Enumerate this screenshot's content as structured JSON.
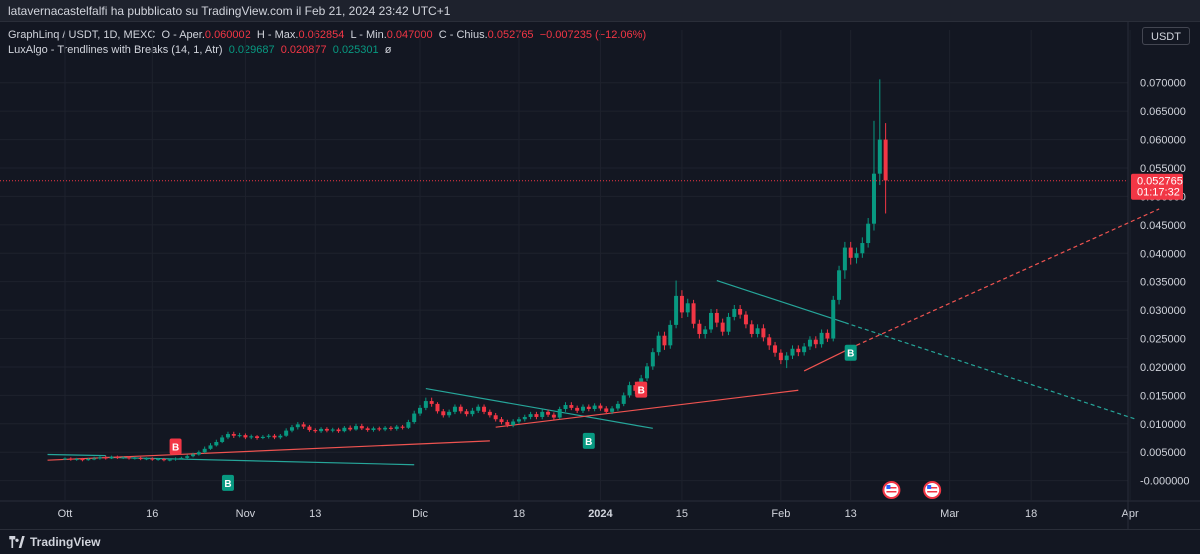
{
  "header": {
    "publish_text": "latavernacastelfalfi ha pubblicato su TradingView.com il Feb 21, 2024 23:42 UTC+1"
  },
  "legend": {
    "symbol": "GraphLinq / USDT, 1D, MEXC",
    "open_label": "O - Aper.",
    "open_value": "0.060002",
    "high_label": "H - Max.",
    "high_value": "0.062854",
    "low_label": "L - Min.",
    "low_value": "0.047000",
    "close_label": "C - Chius.",
    "close_value": "0.052765",
    "change": "−0.007235 (−12.06%)",
    "indicator": "LuxAlgo - Trendlines with Breaks (14, 1, Atr)",
    "ind_v1": "0.029687",
    "ind_v2": "0.020877",
    "ind_v3": "0.025301",
    "ind_v4": "ø"
  },
  "currency_button": "USDT",
  "footer": {
    "brand": "TradingView"
  },
  "colors": {
    "up": "#089981",
    "down": "#f23645",
    "background": "#131722",
    "trend_teal": "#26a69a",
    "trend_red": "#ef5350"
  },
  "chart_data": {
    "type": "candlestick",
    "ylim": [
      -0.002,
      0.074
    ],
    "y_ticks": [
      "0.070000",
      "0.065000",
      "0.060000",
      "0.055000",
      "0.050000",
      "0.045000",
      "0.040000",
      "0.035000",
      "0.030000",
      "0.025000",
      "0.020000",
      "0.015000",
      "0.010000",
      "0.005000",
      "-0.000000"
    ],
    "x_tick_labels": [
      {
        "day": 0,
        "label": "Ott"
      },
      {
        "day": 15,
        "label": "16"
      },
      {
        "day": 31,
        "label": "Nov"
      },
      {
        "day": 43,
        "label": "13"
      },
      {
        "day": 61,
        "label": "Dic"
      },
      {
        "day": 78,
        "label": "18"
      },
      {
        "day": 92,
        "label": "2024"
      },
      {
        "day": 106,
        "label": "15"
      },
      {
        "day": 123,
        "label": "Feb"
      },
      {
        "day": 135,
        "label": "13"
      },
      {
        "day": 152,
        "label": "Mar"
      },
      {
        "day": 166,
        "label": "18"
      },
      {
        "day": 183,
        "label": "Apr"
      }
    ],
    "candles": [
      [
        0.0038,
        0.0039,
        0.0041,
        0.0036
      ],
      [
        0.0039,
        0.0037,
        0.0041,
        0.0035
      ],
      [
        0.0037,
        0.0038,
        0.004,
        0.0035
      ],
      [
        0.0038,
        0.0036,
        0.004,
        0.0034
      ],
      [
        0.0036,
        0.0038,
        0.004,
        0.0035
      ],
      [
        0.0038,
        0.0039,
        0.0042,
        0.0036
      ],
      [
        0.0039,
        0.0041,
        0.0043,
        0.0037
      ],
      [
        0.0041,
        0.0039,
        0.0044,
        0.0037
      ],
      [
        0.0039,
        0.0042,
        0.0044,
        0.0038
      ],
      [
        0.0042,
        0.004,
        0.0044,
        0.0038
      ],
      [
        0.004,
        0.0041,
        0.0043,
        0.0038
      ],
      [
        0.0041,
        0.0039,
        0.0043,
        0.0037
      ],
      [
        0.0039,
        0.004,
        0.0042,
        0.0037
      ],
      [
        0.004,
        0.0038,
        0.0042,
        0.0036
      ],
      [
        0.0038,
        0.0039,
        0.0041,
        0.0036
      ],
      [
        0.0039,
        0.0037,
        0.0041,
        0.0035
      ],
      [
        0.0037,
        0.0038,
        0.004,
        0.0035
      ],
      [
        0.0038,
        0.0036,
        0.004,
        0.0034
      ],
      [
        0.0036,
        0.0037,
        0.0039,
        0.0034
      ],
      [
        0.0037,
        0.0039,
        0.0041,
        0.0035
      ],
      [
        0.0039,
        0.004,
        0.0042,
        0.0037
      ],
      [
        0.004,
        0.0043,
        0.0046,
        0.0038
      ],
      [
        0.0043,
        0.0046,
        0.0049,
        0.0041
      ],
      [
        0.0046,
        0.005,
        0.0053,
        0.0044
      ],
      [
        0.005,
        0.0056,
        0.006,
        0.0048
      ],
      [
        0.0056,
        0.0062,
        0.0066,
        0.0054
      ],
      [
        0.0062,
        0.0068,
        0.0072,
        0.006
      ],
      [
        0.0068,
        0.0076,
        0.008,
        0.0066
      ],
      [
        0.0076,
        0.0082,
        0.0086,
        0.0073
      ],
      [
        0.0082,
        0.0079,
        0.0086,
        0.0075
      ],
      [
        0.0079,
        0.008,
        0.0084,
        0.0076
      ],
      [
        0.008,
        0.0076,
        0.0083,
        0.0073
      ],
      [
        0.0076,
        0.0078,
        0.0081,
        0.0073
      ],
      [
        0.0078,
        0.0075,
        0.008,
        0.0072
      ],
      [
        0.0075,
        0.0077,
        0.008,
        0.0073
      ],
      [
        0.0077,
        0.0079,
        0.0082,
        0.0074
      ],
      [
        0.0079,
        0.0076,
        0.0082,
        0.0073
      ],
      [
        0.0076,
        0.0079,
        0.0082,
        0.0073
      ],
      [
        0.0079,
        0.0088,
        0.0092,
        0.0077
      ],
      [
        0.0088,
        0.0094,
        0.0098,
        0.0085
      ],
      [
        0.0094,
        0.0099,
        0.0103,
        0.009
      ],
      [
        0.0099,
        0.0095,
        0.0103,
        0.0091
      ],
      [
        0.0095,
        0.0089,
        0.0098,
        0.0086
      ],
      [
        0.0089,
        0.0087,
        0.0092,
        0.0084
      ],
      [
        0.0087,
        0.0091,
        0.0094,
        0.0084
      ],
      [
        0.0091,
        0.0088,
        0.0094,
        0.0085
      ],
      [
        0.0088,
        0.009,
        0.0093,
        0.0085
      ],
      [
        0.009,
        0.0087,
        0.0093,
        0.0084
      ],
      [
        0.0087,
        0.0093,
        0.0096,
        0.0085
      ],
      [
        0.0093,
        0.009,
        0.0097,
        0.0087
      ],
      [
        0.009,
        0.0096,
        0.01,
        0.0088
      ],
      [
        0.0096,
        0.0092,
        0.01,
        0.0089
      ],
      [
        0.0092,
        0.0089,
        0.0095,
        0.0086
      ],
      [
        0.0089,
        0.0092,
        0.0095,
        0.0086
      ],
      [
        0.0092,
        0.009,
        0.0095,
        0.0087
      ],
      [
        0.009,
        0.0093,
        0.0096,
        0.0087
      ],
      [
        0.0093,
        0.0091,
        0.0096,
        0.0088
      ],
      [
        0.0091,
        0.0095,
        0.0098,
        0.0088
      ],
      [
        0.0095,
        0.0093,
        0.0098,
        0.009
      ],
      [
        0.0093,
        0.0103,
        0.0107,
        0.0091
      ],
      [
        0.0103,
        0.0118,
        0.0123,
        0.01
      ],
      [
        0.0118,
        0.0128,
        0.0133,
        0.0114
      ],
      [
        0.0128,
        0.014,
        0.0146,
        0.0124
      ],
      [
        0.014,
        0.0135,
        0.0146,
        0.013
      ],
      [
        0.0135,
        0.0122,
        0.0138,
        0.0118
      ],
      [
        0.0122,
        0.0115,
        0.0126,
        0.0111
      ],
      [
        0.0115,
        0.0121,
        0.0125,
        0.0111
      ],
      [
        0.0121,
        0.013,
        0.0134,
        0.0117
      ],
      [
        0.013,
        0.0122,
        0.0134,
        0.0118
      ],
      [
        0.0122,
        0.0117,
        0.0126,
        0.0113
      ],
      [
        0.0117,
        0.0123,
        0.0128,
        0.0113
      ],
      [
        0.0123,
        0.013,
        0.0134,
        0.0119
      ],
      [
        0.013,
        0.0121,
        0.0134,
        0.0117
      ],
      [
        0.0121,
        0.0115,
        0.0125,
        0.0111
      ],
      [
        0.0115,
        0.0108,
        0.0119,
        0.0104
      ],
      [
        0.0108,
        0.0103,
        0.0112,
        0.0099
      ],
      [
        0.0103,
        0.0098,
        0.0107,
        0.0094
      ],
      [
        0.0098,
        0.0104,
        0.0108,
        0.0094
      ],
      [
        0.0104,
        0.0108,
        0.0112,
        0.01
      ],
      [
        0.0108,
        0.0112,
        0.0116,
        0.0104
      ],
      [
        0.0112,
        0.0117,
        0.0121,
        0.0108
      ],
      [
        0.0117,
        0.0112,
        0.0121,
        0.0108
      ],
      [
        0.0112,
        0.0121,
        0.0125,
        0.0108
      ],
      [
        0.0121,
        0.0116,
        0.0125,
        0.0112
      ],
      [
        0.0116,
        0.0111,
        0.012,
        0.0107
      ],
      [
        0.0111,
        0.0126,
        0.013,
        0.0108
      ],
      [
        0.0126,
        0.0133,
        0.0138,
        0.0121
      ],
      [
        0.0133,
        0.0128,
        0.0138,
        0.0124
      ],
      [
        0.0128,
        0.0123,
        0.0132,
        0.0119
      ],
      [
        0.0123,
        0.013,
        0.0134,
        0.0119
      ],
      [
        0.013,
        0.0126,
        0.0134,
        0.0122
      ],
      [
        0.0126,
        0.0132,
        0.0136,
        0.0122
      ],
      [
        0.0132,
        0.0127,
        0.0136,
        0.0123
      ],
      [
        0.0127,
        0.0121,
        0.0131,
        0.0117
      ],
      [
        0.0121,
        0.0127,
        0.0131,
        0.0117
      ],
      [
        0.0127,
        0.0135,
        0.014,
        0.0123
      ],
      [
        0.0135,
        0.015,
        0.0155,
        0.0131
      ],
      [
        0.015,
        0.0168,
        0.0174,
        0.0146
      ],
      [
        0.0168,
        0.0158,
        0.0174,
        0.0152
      ],
      [
        0.0158,
        0.018,
        0.0186,
        0.0153
      ],
      [
        0.018,
        0.0201,
        0.0207,
        0.0175
      ],
      [
        0.0201,
        0.0226,
        0.0233,
        0.0195
      ],
      [
        0.0226,
        0.0255,
        0.0262,
        0.022
      ],
      [
        0.0255,
        0.0238,
        0.0262,
        0.023
      ],
      [
        0.0238,
        0.0274,
        0.0282,
        0.0232
      ],
      [
        0.0274,
        0.0325,
        0.0352,
        0.0268
      ],
      [
        0.0325,
        0.0296,
        0.0335,
        0.0286
      ],
      [
        0.0296,
        0.0312,
        0.032,
        0.0288
      ],
      [
        0.0312,
        0.0276,
        0.0318,
        0.0268
      ],
      [
        0.0276,
        0.0258,
        0.0283,
        0.025
      ],
      [
        0.0258,
        0.0266,
        0.0272,
        0.025
      ],
      [
        0.0266,
        0.0295,
        0.0302,
        0.026
      ],
      [
        0.0295,
        0.0278,
        0.0302,
        0.027
      ],
      [
        0.0278,
        0.0262,
        0.0285,
        0.0255
      ],
      [
        0.0262,
        0.0288,
        0.0295,
        0.0256
      ],
      [
        0.0288,
        0.0302,
        0.0309,
        0.0282
      ],
      [
        0.0302,
        0.0292,
        0.0309,
        0.0285
      ],
      [
        0.0292,
        0.0275,
        0.0298,
        0.0268
      ],
      [
        0.0275,
        0.0258,
        0.0282,
        0.0252
      ],
      [
        0.0258,
        0.0268,
        0.0275,
        0.0252
      ],
      [
        0.0268,
        0.0252,
        0.0275,
        0.0245
      ],
      [
        0.0252,
        0.0238,
        0.0258,
        0.023
      ],
      [
        0.0238,
        0.0225,
        0.0244,
        0.0218
      ],
      [
        0.0225,
        0.0212,
        0.0231,
        0.0205
      ],
      [
        0.0212,
        0.022,
        0.0226,
        0.0198
      ],
      [
        0.022,
        0.0232,
        0.0238,
        0.0214
      ],
      [
        0.0232,
        0.0226,
        0.0238,
        0.0219
      ],
      [
        0.0226,
        0.0236,
        0.0242,
        0.022
      ],
      [
        0.0236,
        0.0248,
        0.0254,
        0.023
      ],
      [
        0.0248,
        0.024,
        0.0254,
        0.0233
      ],
      [
        0.024,
        0.026,
        0.0266,
        0.0234
      ],
      [
        0.026,
        0.025,
        0.0266,
        0.0244
      ],
      [
        0.025,
        0.0318,
        0.0325,
        0.0245
      ],
      [
        0.0318,
        0.037,
        0.0378,
        0.031
      ],
      [
        0.037,
        0.041,
        0.042,
        0.0355
      ],
      [
        0.041,
        0.0392,
        0.042,
        0.038
      ],
      [
        0.0392,
        0.04,
        0.041,
        0.0382
      ],
      [
        0.04,
        0.0418,
        0.0428,
        0.0392
      ],
      [
        0.0418,
        0.0452,
        0.0462,
        0.041
      ],
      [
        0.0452,
        0.054,
        0.0633,
        0.044
      ],
      [
        0.054,
        0.06,
        0.0706,
        0.052
      ],
      [
        0.06,
        0.0528,
        0.0629,
        0.047
      ]
    ],
    "trendlines": [
      {
        "color": "teal",
        "style": "solid",
        "from": [
          -3,
          0.0046
        ],
        "to": [
          7,
          0.0044
        ]
      },
      {
        "color": "teal",
        "style": "solid",
        "from": [
          7,
          0.0041
        ],
        "to": [
          60,
          0.0028
        ]
      },
      {
        "color": "teal",
        "style": "solid",
        "from": [
          62,
          0.0162
        ],
        "to": [
          101,
          0.0092
        ]
      },
      {
        "color": "teal",
        "style": "solid",
        "from": [
          112,
          0.0352
        ],
        "to": [
          134,
          0.0278
        ]
      },
      {
        "color": "teal",
        "style": "dashed",
        "from": [
          134,
          0.0278
        ],
        "to": [
          184,
          0.0108
        ]
      },
      {
        "color": "red",
        "style": "solid",
        "from": [
          -3,
          0.0036
        ],
        "to": [
          73,
          0.007
        ]
      },
      {
        "color": "red",
        "style": "solid",
        "from": [
          74,
          0.0094
        ],
        "to": [
          126,
          0.0159
        ]
      },
      {
        "color": "red",
        "style": "solid",
        "from": [
          127,
          0.0193
        ],
        "to": [
          136,
          0.0238
        ]
      },
      {
        "color": "red",
        "style": "dashed",
        "from": [
          136,
          0.0238
        ],
        "to": [
          188,
          0.0478
        ]
      }
    ],
    "markers": [
      {
        "day": 19,
        "price": 0.006,
        "type": "sell",
        "text": "B"
      },
      {
        "day": 28,
        "price": -0.0004,
        "type": "buy",
        "text": "B"
      },
      {
        "day": 90,
        "price": 0.007,
        "type": "buy",
        "text": "B"
      },
      {
        "day": 99,
        "price": 0.016,
        "type": "sell",
        "text": "B"
      },
      {
        "day": 135,
        "price": 0.0225,
        "type": "buy",
        "text": "B"
      }
    ],
    "event_icons": [
      {
        "day": 142
      },
      {
        "day": 149
      }
    ],
    "last_price": {
      "value": 0.052765,
      "label": "0.052765",
      "countdown": "01:17:32"
    }
  }
}
